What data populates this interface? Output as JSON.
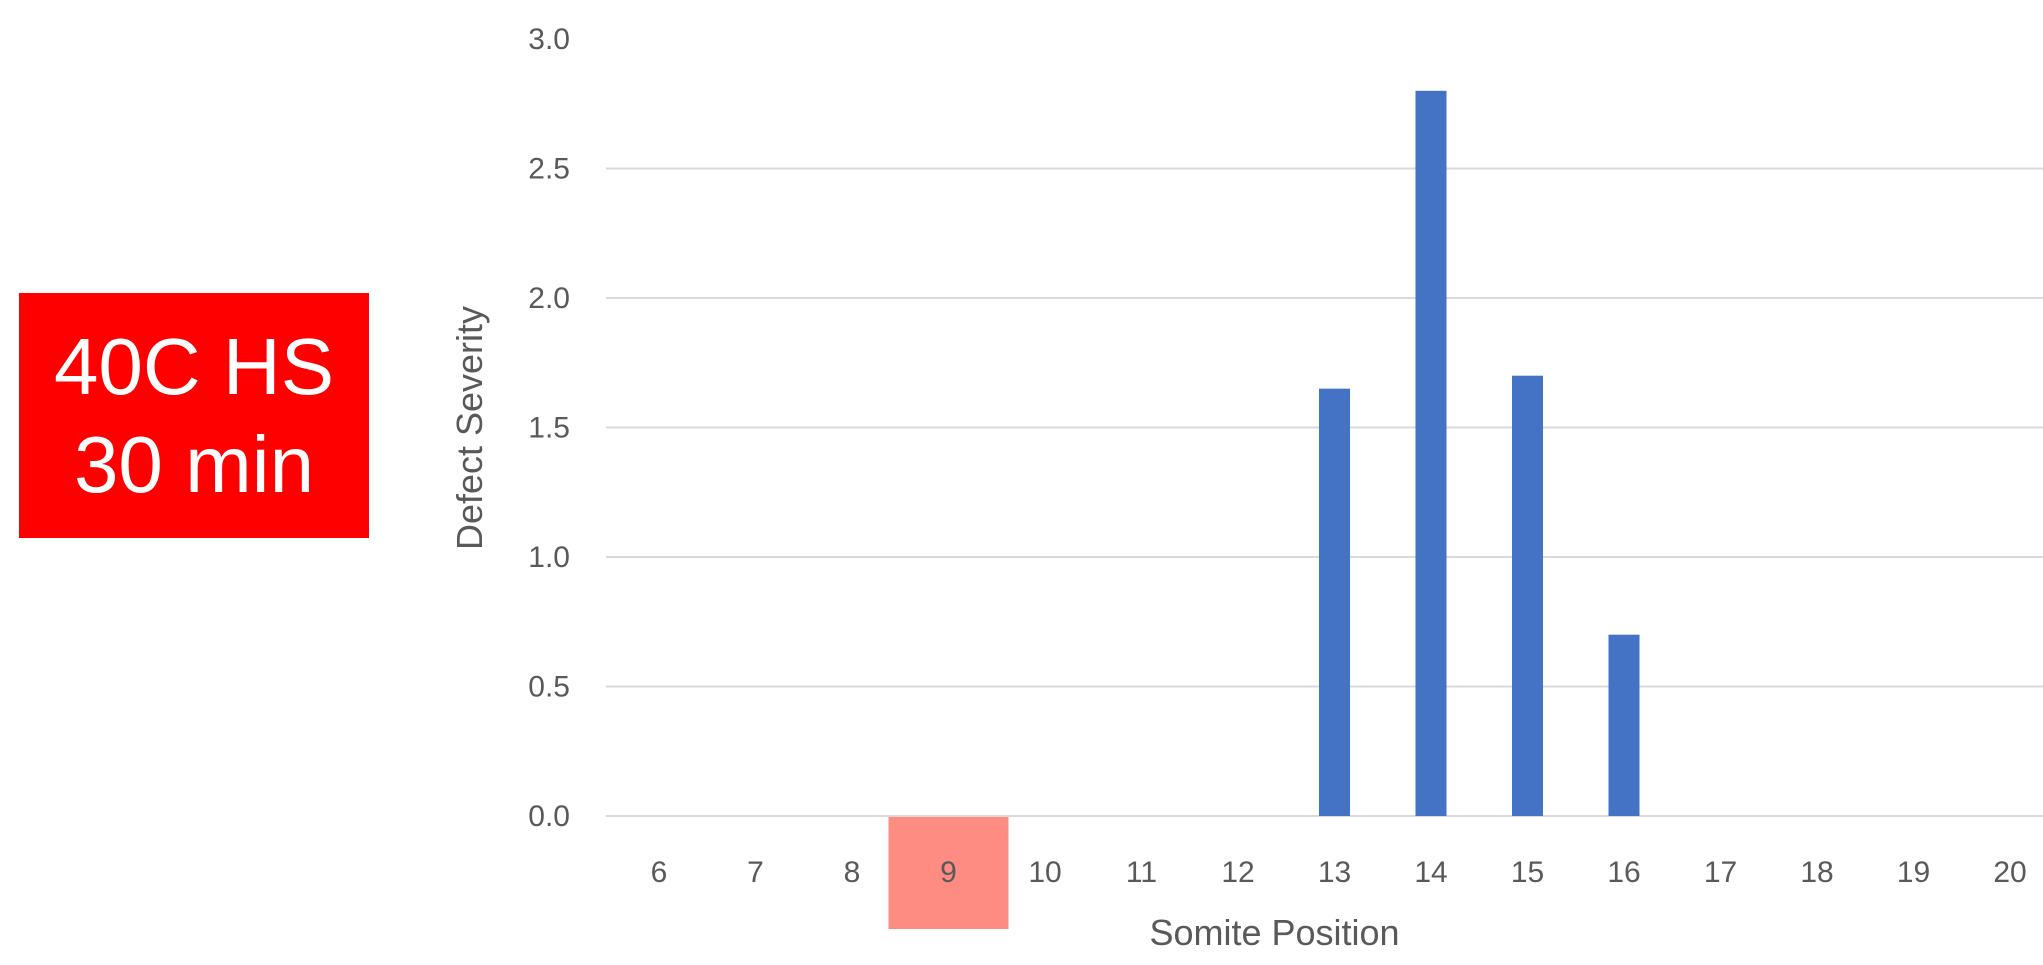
{
  "condition_label": {
    "line1": "40C HS",
    "line2": "30 min",
    "background": "#ff0000",
    "text_color": "#ffffff"
  },
  "chart_data": {
    "type": "bar",
    "xlabel": "Somite Position",
    "ylabel": "Defect Severity",
    "ylim": [
      0,
      3
    ],
    "yticks": [
      "0.0",
      "0.5",
      "1.0",
      "1.5",
      "2.0",
      "2.5",
      "3.0"
    ],
    "grid": "horizontal",
    "categories": [
      "6",
      "7",
      "8",
      "9",
      "10",
      "11",
      "12",
      "13",
      "14",
      "15",
      "16",
      "17",
      "18",
      "19",
      "20"
    ],
    "values": [
      0,
      0,
      0,
      0,
      0,
      0,
      0,
      1.65,
      2.8,
      1.7,
      0.7,
      0,
      0,
      0,
      0
    ],
    "bar_color": "#4472c4",
    "highlighted_category": "9",
    "highlight_color": "#ff8c82",
    "grid_color": "#d9d9d9",
    "tick_color": "#595959"
  }
}
